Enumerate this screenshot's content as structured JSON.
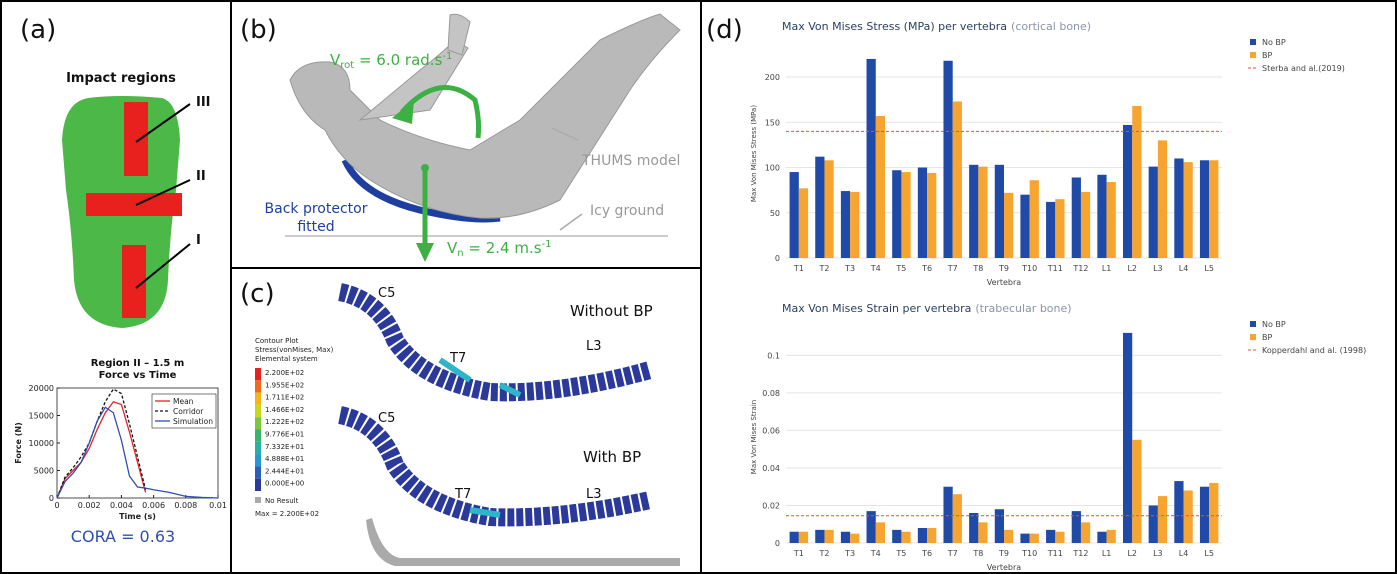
{
  "panel_labels": [
    "(a)",
    "(b)",
    "(c)",
    "(d)"
  ],
  "panel_a": {
    "title": "Impact regions",
    "regions": [
      "III",
      "II",
      "I"
    ],
    "cora": "CORA = 0.63"
  },
  "panel_b": {
    "v_rot": [
      "V",
      "rot",
      " = 6.0 rad.s",
      "-1"
    ],
    "v_n": [
      "V",
      "n",
      " = 2.4 m.s",
      "-1"
    ],
    "model": "THUMS model",
    "back_protector": [
      "Back protector",
      "fitted"
    ],
    "ground": "Icy ground"
  },
  "panel_c": {
    "top_labels": [
      "C5",
      "T7",
      "L3"
    ],
    "bottom_labels": [
      "C5",
      "T7",
      "L3"
    ],
    "conditions": [
      "Without BP",
      "With BP"
    ],
    "legend_header": [
      "Contour Plot",
      "Stress(vonMises, Max)",
      "Elemental system"
    ],
    "scale": [
      "2.200E+02",
      "1.955E+02",
      "1.711E+02",
      "1.466E+02",
      "1.222E+02",
      "9.776E+01",
      "7.332E+01",
      "4.888E+01",
      "2.444E+01",
      "0.000E+00"
    ],
    "no_result": "No Result",
    "max": "Max = 2.200E+02"
  },
  "chart_data": [
    {
      "type": "line",
      "title": [
        "Region II – 1.5 m",
        "Force vs Time"
      ],
      "x_label": "Time (s)",
      "y_label": "Force (N)",
      "x": [
        0,
        0.0005,
        0.001,
        0.0015,
        0.002,
        0.0025,
        0.003,
        0.0035,
        0.004,
        0.0045,
        0.005,
        0.0055,
        0.006,
        0.007,
        0.008,
        0.009,
        0.01
      ],
      "series": [
        {
          "name": "Mean",
          "color": "#e0262a",
          "dash": false,
          "values": [
            0,
            3500,
            5000,
            6500,
            9000,
            12500,
            15500,
            17500,
            17000,
            12000,
            6500,
            1000,
            null,
            null,
            null,
            null,
            null
          ]
        },
        {
          "name": "Corridor",
          "color": "#111111",
          "dash": true,
          "values": [
            0,
            3800,
            5500,
            7500,
            10000,
            14000,
            17500,
            19800,
            19000,
            13500,
            7500,
            1500,
            null,
            null,
            null,
            null,
            null
          ]
        },
        {
          "name": "Simulation",
          "color": "#2f4fb0",
          "dash": false,
          "values": [
            0,
            3000,
            4500,
            6500,
            10000,
            14000,
            16500,
            15500,
            10500,
            4000,
            2000,
            1800,
            1500,
            1000,
            300,
            100,
            0
          ]
        }
      ],
      "xlim": [
        0,
        0.01
      ],
      "xticks": [
        0,
        0.002,
        0.004,
        0.006,
        0.008,
        0.01
      ],
      "ylim": [
        0,
        20000
      ],
      "yticks": [
        0,
        5000,
        10000,
        15000,
        20000
      ],
      "legend": "upper right"
    },
    {
      "type": "bar",
      "title": "Max Von Mises Stress (MPa) per vertebra",
      "subtitle": "(cortical bone)",
      "x_label": "Vertebra",
      "y_label": "Max Von Mises Stress (MPa)",
      "categories": [
        "T1",
        "T2",
        "T3",
        "T4",
        "T5",
        "T6",
        "T7",
        "T8",
        "T9",
        "T10",
        "T11",
        "T12",
        "L1",
        "L2",
        "L3",
        "L4",
        "L5"
      ],
      "series": [
        {
          "name": "No BP",
          "color": "#1f4aa8",
          "values": [
            95,
            112,
            74,
            220,
            97,
            100,
            218,
            103,
            103,
            70,
            62,
            89,
            92,
            147,
            101,
            110,
            108
          ]
        },
        {
          "name": "BP",
          "color": "#f7a531",
          "values": [
            77,
            108,
            73,
            157,
            95,
            94,
            173,
            101,
            72,
            86,
            65,
            73,
            84,
            168,
            130,
            106,
            108
          ]
        }
      ],
      "reference_lines": [
        {
          "name": "Sterba and al.(2019)",
          "value": 140,
          "color": "#e0533f"
        }
      ],
      "ylim": [
        0,
        231
      ],
      "yticks": [
        0,
        50,
        100,
        150,
        200
      ],
      "grid": true,
      "legend": "outside right"
    },
    {
      "type": "bar",
      "title": "Max Von Mises Strain per vertebra",
      "subtitle": "(trabecular bone)",
      "x_label": "Vertebra",
      "y_label": "Max Von Mises Strain",
      "categories": [
        "T1",
        "T2",
        "T3",
        "T4",
        "T5",
        "T6",
        "T7",
        "T8",
        "T9",
        "T10",
        "T11",
        "T12",
        "L1",
        "L2",
        "L3",
        "L4",
        "L5"
      ],
      "series": [
        {
          "name": "No BP",
          "color": "#1f4aa8",
          "values": [
            0.006,
            0.007,
            0.006,
            0.017,
            0.007,
            0.008,
            0.03,
            0.016,
            0.018,
            0.005,
            0.007,
            0.017,
            0.006,
            0.112,
            0.02,
            0.033,
            0.03
          ]
        },
        {
          "name": "BP",
          "color": "#f7a531",
          "values": [
            0.006,
            0.007,
            0.005,
            0.011,
            0.006,
            0.008,
            0.026,
            0.011,
            0.007,
            0.005,
            0.006,
            0.011,
            0.007,
            0.055,
            0.025,
            0.028,
            0.032
          ]
        }
      ],
      "reference_lines": [
        {
          "name": "Kopperdahl and al. (1998)",
          "value": 0.0145,
          "color": "#e0533f"
        }
      ],
      "ylim": [
        0,
        0.113
      ],
      "yticks": [
        0,
        0.02,
        0.04,
        0.06,
        0.08,
        0.1
      ],
      "grid": true,
      "legend": "outside right"
    }
  ]
}
